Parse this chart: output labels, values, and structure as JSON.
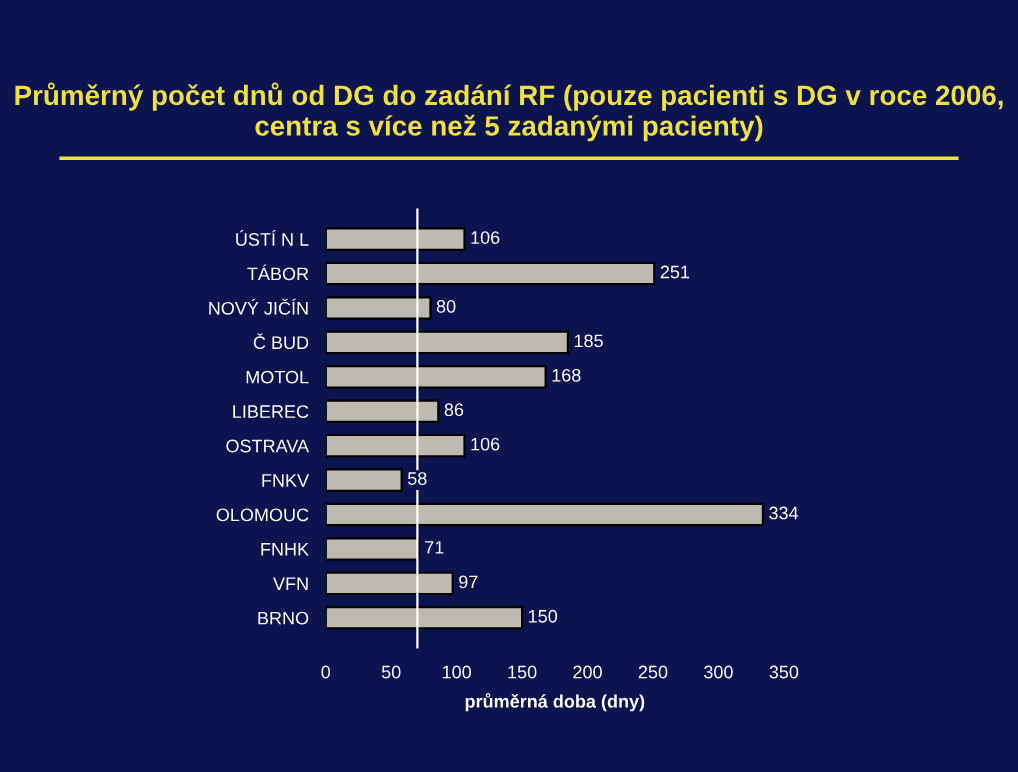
{
  "chart_data": {
    "type": "bar",
    "orientation": "horizontal",
    "title": "Průměrný počet dnů od DG do zadání RF (pouze pacienti s DG v roce 2006, centra s více než 5 zadanými pacienty)",
    "xlabel": "průměrná doba (dny)",
    "categories": [
      "ÚSTÍ N L",
      "TÁBOR",
      "NOVÝ JIČÍN",
      "Č BUD",
      "MOTOL",
      "LIBEREC",
      "OSTRAVA",
      "FNKV",
      "OLOMOUC",
      "FNHK",
      "VFN",
      "BRNO"
    ],
    "values": [
      106,
      251,
      80,
      185,
      168,
      86,
      106,
      58,
      334,
      71,
      97,
      150
    ],
    "color": "#bdbab0",
    "data_labels": true,
    "xlim": [
      0,
      350
    ],
    "xticks": [
      0,
      50,
      100,
      150,
      200,
      250,
      300,
      350
    ],
    "ref_lines": [
      {
        "axis": "x",
        "value": 70,
        "color": "#ffffff"
      }
    ],
    "grid": false,
    "legend": false
  }
}
